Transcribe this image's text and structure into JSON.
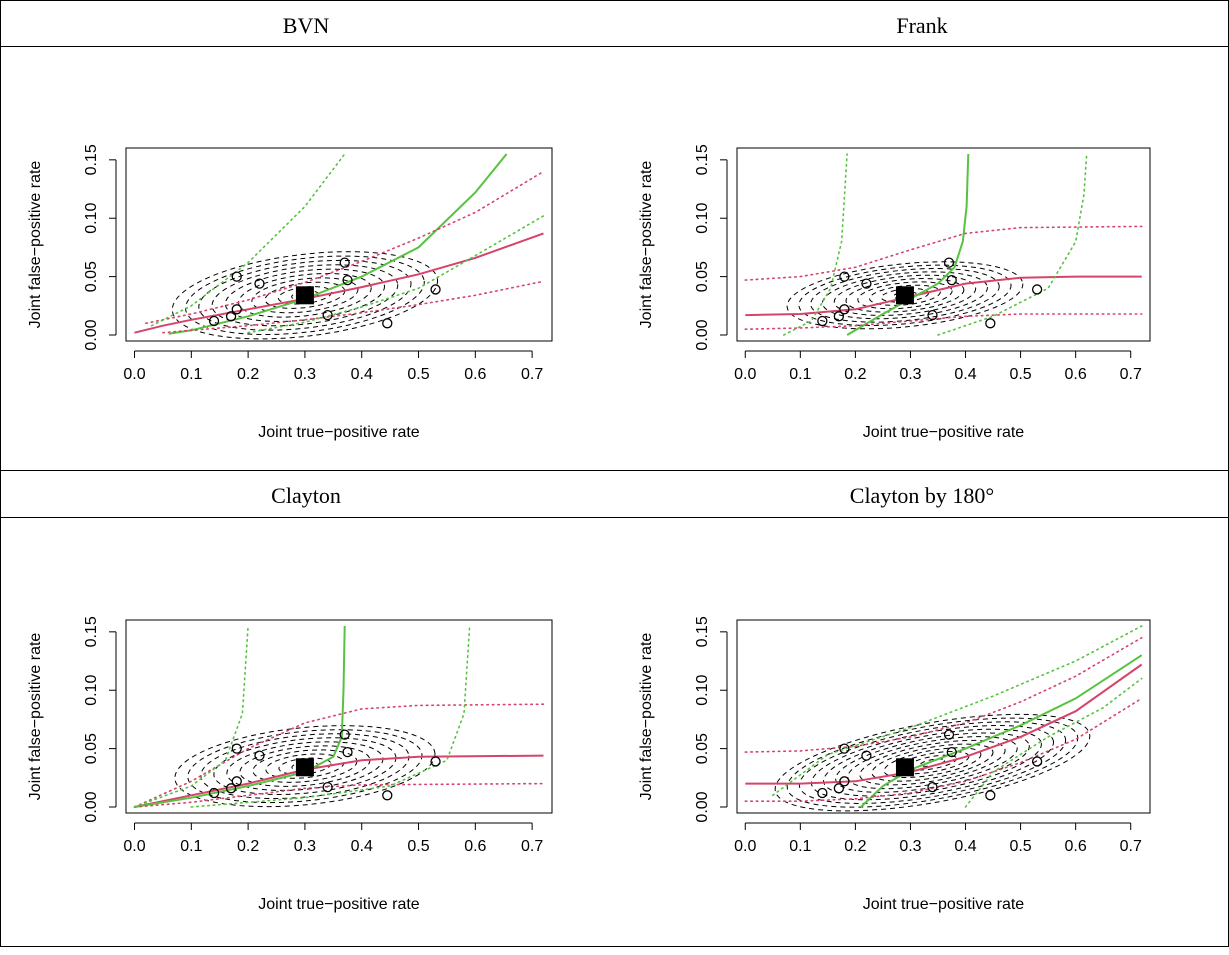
{
  "panels": [
    {
      "title": "BVN"
    },
    {
      "title": "Frank"
    },
    {
      "title": "Clayton"
    },
    {
      "title": "Clayton by 180°"
    }
  ],
  "chart_data": [
    {
      "type": "scatter",
      "title": "BVN",
      "xlabel": "Joint true−positive rate",
      "ylabel": "Joint false−positive rate",
      "xlim": [
        0,
        0.72
      ],
      "ylim": [
        0,
        0.155
      ],
      "xticks": [
        "0.0",
        "0.1",
        "0.2",
        "0.3",
        "0.4",
        "0.5",
        "0.6",
        "0.7"
      ],
      "yticks": [
        "0.00",
        "0.05",
        "0.10",
        "0.15"
      ],
      "points": [
        [
          0.14,
          0.012
        ],
        [
          0.17,
          0.016
        ],
        [
          0.18,
          0.05
        ],
        [
          0.18,
          0.022
        ],
        [
          0.22,
          0.044
        ],
        [
          0.34,
          0.017
        ],
        [
          0.37,
          0.062
        ],
        [
          0.375,
          0.047
        ],
        [
          0.445,
          0.01
        ],
        [
          0.53,
          0.039
        ]
      ],
      "summary_point": [
        0.3,
        0.034
      ],
      "series": [
        {
          "color": "#d6436b",
          "style": "solid",
          "values": [
            [
              0.0,
              0.002
            ],
            [
              0.05,
              0.008
            ],
            [
              0.1,
              0.013
            ],
            [
              0.2,
              0.022
            ],
            [
              0.3,
              0.031
            ],
            [
              0.4,
              0.041
            ],
            [
              0.5,
              0.052
            ],
            [
              0.6,
              0.066
            ],
            [
              0.72,
              0.087
            ]
          ]
        },
        {
          "color": "#56c23f",
          "style": "solid",
          "values": [
            [
              0.06,
              0.001
            ],
            [
              0.1,
              0.004
            ],
            [
              0.2,
              0.016
            ],
            [
              0.3,
              0.031
            ],
            [
              0.4,
              0.05
            ],
            [
              0.5,
              0.075
            ],
            [
              0.6,
              0.122
            ],
            [
              0.655,
              0.155
            ]
          ]
        },
        {
          "color": "#d6436b",
          "style": "dotted",
          "values": [
            [
              0.02,
              0.01
            ],
            [
              0.1,
              0.018
            ],
            [
              0.2,
              0.03
            ],
            [
              0.3,
              0.045
            ],
            [
              0.4,
              0.063
            ],
            [
              0.5,
              0.083
            ],
            [
              0.6,
              0.105
            ],
            [
              0.72,
              0.14
            ]
          ]
        },
        {
          "color": "#d6436b",
          "style": "dotted",
          "values": [
            [
              0.05,
              0.002
            ],
            [
              0.1,
              0.004
            ],
            [
              0.2,
              0.008
            ],
            [
              0.3,
              0.013
            ],
            [
              0.4,
              0.019
            ],
            [
              0.5,
              0.026
            ],
            [
              0.6,
              0.034
            ],
            [
              0.72,
              0.046
            ]
          ]
        },
        {
          "color": "#56c23f",
          "style": "dotted",
          "values": [
            [
              0.03,
              0.008
            ],
            [
              0.1,
              0.025
            ],
            [
              0.2,
              0.062
            ],
            [
              0.3,
              0.11
            ],
            [
              0.37,
              0.155
            ]
          ]
        },
        {
          "color": "#56c23f",
          "style": "dotted",
          "values": [
            [
              0.2,
              0.002
            ],
            [
              0.3,
              0.011
            ],
            [
              0.4,
              0.024
            ],
            [
              0.5,
              0.04
            ],
            [
              0.6,
              0.068
            ],
            [
              0.72,
              0.102
            ]
          ]
        }
      ],
      "ellipse": {
        "cx": 0.3,
        "cy": 0.034,
        "rx": 0.235,
        "ry": 0.035,
        "tilt": 0.12,
        "rings": 10
      }
    },
    {
      "type": "scatter",
      "title": "Frank",
      "xlabel": "Joint true−positive rate",
      "ylabel": "Joint false−positive rate",
      "xlim": [
        0,
        0.72
      ],
      "ylim": [
        0,
        0.155
      ],
      "xticks": [
        "0.0",
        "0.1",
        "0.2",
        "0.3",
        "0.4",
        "0.5",
        "0.6",
        "0.7"
      ],
      "yticks": [
        "0.00",
        "0.05",
        "0.10",
        "0.15"
      ],
      "points": [
        [
          0.14,
          0.012
        ],
        [
          0.17,
          0.016
        ],
        [
          0.18,
          0.05
        ],
        [
          0.18,
          0.022
        ],
        [
          0.22,
          0.044
        ],
        [
          0.34,
          0.017
        ],
        [
          0.37,
          0.062
        ],
        [
          0.375,
          0.047
        ],
        [
          0.445,
          0.01
        ],
        [
          0.53,
          0.039
        ]
      ],
      "summary_point": [
        0.29,
        0.034
      ],
      "series": [
        {
          "color": "#d6436b",
          "style": "solid",
          "values": [
            [
              0.0,
              0.017
            ],
            [
              0.1,
              0.018
            ],
            [
              0.2,
              0.022
            ],
            [
              0.3,
              0.033
            ],
            [
              0.4,
              0.044
            ],
            [
              0.5,
              0.049
            ],
            [
              0.6,
              0.05
            ],
            [
              0.72,
              0.05
            ]
          ]
        },
        {
          "color": "#56c23f",
          "style": "solid",
          "values": [
            [
              0.185,
              0.0
            ],
            [
              0.25,
              0.018
            ],
            [
              0.3,
              0.031
            ],
            [
              0.35,
              0.044
            ],
            [
              0.38,
              0.058
            ],
            [
              0.395,
              0.08
            ],
            [
              0.402,
              0.11
            ],
            [
              0.405,
              0.155
            ]
          ]
        },
        {
          "color": "#d6436b",
          "style": "dotted",
          "values": [
            [
              0.0,
              0.047
            ],
            [
              0.1,
              0.05
            ],
            [
              0.2,
              0.058
            ],
            [
              0.3,
              0.073
            ],
            [
              0.4,
              0.087
            ],
            [
              0.5,
              0.092
            ],
            [
              0.72,
              0.093
            ]
          ]
        },
        {
          "color": "#d6436b",
          "style": "dotted",
          "values": [
            [
              0.0,
              0.005
            ],
            [
              0.1,
              0.006
            ],
            [
              0.2,
              0.008
            ],
            [
              0.3,
              0.012
            ],
            [
              0.4,
              0.016
            ],
            [
              0.5,
              0.018
            ],
            [
              0.72,
              0.018
            ]
          ]
        },
        {
          "color": "#56c23f",
          "style": "dotted",
          "values": [
            [
              0.07,
              0.0
            ],
            [
              0.12,
              0.012
            ],
            [
              0.155,
              0.04
            ],
            [
              0.175,
              0.08
            ],
            [
              0.185,
              0.155
            ]
          ]
        },
        {
          "color": "#56c23f",
          "style": "dotted",
          "values": [
            [
              0.35,
              0.0
            ],
            [
              0.45,
              0.016
            ],
            [
              0.55,
              0.04
            ],
            [
              0.6,
              0.08
            ],
            [
              0.615,
              0.12
            ],
            [
              0.62,
              0.155
            ]
          ]
        }
      ],
      "ellipse": {
        "cx": 0.29,
        "cy": 0.034,
        "rx": 0.215,
        "ry": 0.027,
        "tilt": 0.1,
        "rings": 10
      }
    },
    {
      "type": "scatter",
      "title": "Clayton",
      "xlabel": "Joint true−positive rate",
      "ylabel": "Joint false−positive rate",
      "xlim": [
        0,
        0.72
      ],
      "ylim": [
        0,
        0.155
      ],
      "xticks": [
        "0.0",
        "0.1",
        "0.2",
        "0.3",
        "0.4",
        "0.5",
        "0.6",
        "0.7"
      ],
      "yticks": [
        "0.00",
        "0.05",
        "0.10",
        "0.15"
      ],
      "points": [
        [
          0.14,
          0.012
        ],
        [
          0.17,
          0.016
        ],
        [
          0.18,
          0.05
        ],
        [
          0.18,
          0.022
        ],
        [
          0.22,
          0.044
        ],
        [
          0.34,
          0.017
        ],
        [
          0.37,
          0.062
        ],
        [
          0.375,
          0.047
        ],
        [
          0.445,
          0.01
        ],
        [
          0.53,
          0.039
        ]
      ],
      "summary_point": [
        0.3,
        0.034
      ],
      "series": [
        {
          "color": "#d6436b",
          "style": "solid",
          "values": [
            [
              0.0,
              0.0
            ],
            [
              0.1,
              0.01
            ],
            [
              0.2,
              0.02
            ],
            [
              0.3,
              0.032
            ],
            [
              0.4,
              0.04
            ],
            [
              0.5,
              0.043
            ],
            [
              0.72,
              0.044
            ]
          ]
        },
        {
          "color": "#56c23f",
          "style": "solid",
          "values": [
            [
              0.0,
              0.0
            ],
            [
              0.1,
              0.008
            ],
            [
              0.2,
              0.018
            ],
            [
              0.3,
              0.03
            ],
            [
              0.35,
              0.043
            ],
            [
              0.365,
              0.06
            ],
            [
              0.368,
              0.1
            ],
            [
              0.37,
              0.155
            ]
          ]
        },
        {
          "color": "#d6436b",
          "style": "dotted",
          "values": [
            [
              0.0,
              0.0
            ],
            [
              0.1,
              0.022
            ],
            [
              0.2,
              0.05
            ],
            [
              0.3,
              0.072
            ],
            [
              0.4,
              0.084
            ],
            [
              0.5,
              0.087
            ],
            [
              0.72,
              0.088
            ]
          ]
        },
        {
          "color": "#d6436b",
          "style": "dotted",
          "values": [
            [
              0.0,
              0.0
            ],
            [
              0.1,
              0.004
            ],
            [
              0.2,
              0.01
            ],
            [
              0.3,
              0.016
            ],
            [
              0.4,
              0.019
            ],
            [
              0.72,
              0.02
            ]
          ]
        },
        {
          "color": "#56c23f",
          "style": "dotted",
          "values": [
            [
              0.0,
              0.0
            ],
            [
              0.1,
              0.018
            ],
            [
              0.16,
              0.04
            ],
            [
              0.19,
              0.08
            ],
            [
              0.2,
              0.155
            ]
          ]
        },
        {
          "color": "#56c23f",
          "style": "dotted",
          "values": [
            [
              0.1,
              0.0
            ],
            [
              0.3,
              0.008
            ],
            [
              0.45,
              0.018
            ],
            [
              0.55,
              0.04
            ],
            [
              0.58,
              0.08
            ],
            [
              0.59,
              0.155
            ]
          ]
        }
      ],
      "ellipse": {
        "cx": 0.3,
        "cy": 0.035,
        "rx": 0.23,
        "ry": 0.033,
        "tilt": 0.1,
        "rings": 10
      }
    },
    {
      "type": "scatter",
      "title": "Clayton by 180°",
      "xlabel": "Joint true−positive rate",
      "ylabel": "Joint false−positive rate",
      "xlim": [
        0,
        0.72
      ],
      "ylim": [
        0,
        0.155
      ],
      "xticks": [
        "0.0",
        "0.1",
        "0.2",
        "0.3",
        "0.4",
        "0.5",
        "0.6",
        "0.7"
      ],
      "yticks": [
        "0.00",
        "0.05",
        "0.10",
        "0.15"
      ],
      "points": [
        [
          0.14,
          0.012
        ],
        [
          0.17,
          0.016
        ],
        [
          0.18,
          0.05
        ],
        [
          0.18,
          0.022
        ],
        [
          0.22,
          0.044
        ],
        [
          0.34,
          0.017
        ],
        [
          0.37,
          0.062
        ],
        [
          0.375,
          0.047
        ],
        [
          0.445,
          0.01
        ],
        [
          0.53,
          0.039
        ]
      ],
      "summary_point": [
        0.29,
        0.034
      ],
      "series": [
        {
          "color": "#d6436b",
          "style": "solid",
          "values": [
            [
              0.0,
              0.02
            ],
            [
              0.1,
              0.02
            ],
            [
              0.2,
              0.022
            ],
            [
              0.3,
              0.03
            ],
            [
              0.4,
              0.043
            ],
            [
              0.5,
              0.06
            ],
            [
              0.6,
              0.082
            ],
            [
              0.72,
              0.122
            ]
          ]
        },
        {
          "color": "#56c23f",
          "style": "solid",
          "values": [
            [
              0.21,
              0.0
            ],
            [
              0.25,
              0.018
            ],
            [
              0.3,
              0.032
            ],
            [
              0.4,
              0.05
            ],
            [
              0.5,
              0.07
            ],
            [
              0.6,
              0.093
            ],
            [
              0.72,
              0.13
            ]
          ]
        },
        {
          "color": "#d6436b",
          "style": "dotted",
          "values": [
            [
              0.0,
              0.047
            ],
            [
              0.1,
              0.048
            ],
            [
              0.2,
              0.052
            ],
            [
              0.3,
              0.06
            ],
            [
              0.4,
              0.072
            ],
            [
              0.5,
              0.09
            ],
            [
              0.6,
              0.112
            ],
            [
              0.72,
              0.145
            ]
          ]
        },
        {
          "color": "#d6436b",
          "style": "dotted",
          "values": [
            [
              0.0,
              0.005
            ],
            [
              0.1,
              0.005
            ],
            [
              0.2,
              0.007
            ],
            [
              0.3,
              0.012
            ],
            [
              0.4,
              0.022
            ],
            [
              0.5,
              0.038
            ],
            [
              0.6,
              0.058
            ],
            [
              0.72,
              0.093
            ]
          ]
        },
        {
          "color": "#56c23f",
          "style": "dotted",
          "values": [
            [
              0.05,
              0.01
            ],
            [
              0.15,
              0.045
            ],
            [
              0.3,
              0.068
            ],
            [
              0.45,
              0.095
            ],
            [
              0.6,
              0.125
            ],
            [
              0.72,
              0.155
            ]
          ]
        },
        {
          "color": "#56c23f",
          "style": "dotted",
          "values": [
            [
              0.4,
              0.0
            ],
            [
              0.45,
              0.03
            ],
            [
              0.55,
              0.06
            ],
            [
              0.65,
              0.085
            ],
            [
              0.72,
              0.11
            ]
          ]
        }
      ],
      "ellipse": {
        "cx": 0.34,
        "cy": 0.038,
        "rx": 0.29,
        "ry": 0.034,
        "tilt": 0.18,
        "rings": 13
      }
    }
  ]
}
